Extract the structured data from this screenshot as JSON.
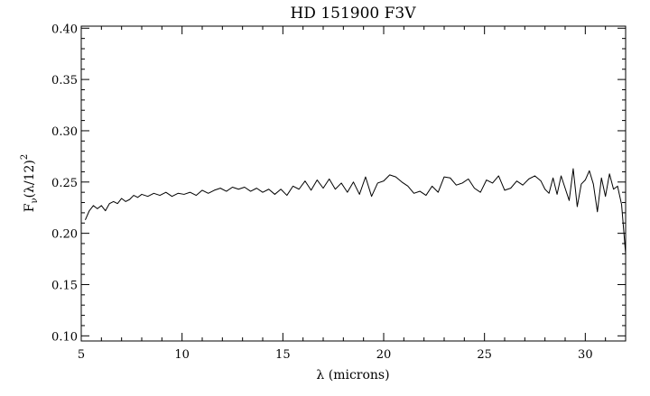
{
  "chart_data": {
    "type": "line",
    "title": "HD 151900 F3V",
    "xlabel": "λ (microns)",
    "ylabel": {
      "symbol": "F",
      "subscript": "ν",
      "expression": "(λ/12)",
      "superscript": "2"
    },
    "xlim": [
      5,
      32
    ],
    "ylim": [
      0.095,
      0.402
    ],
    "x_ticks": [
      5,
      10,
      15,
      20,
      25,
      30
    ],
    "x_tick_labels": [
      "5",
      "10",
      "15",
      "20",
      "25",
      "30"
    ],
    "y_ticks": [
      0.1,
      0.15,
      0.2,
      0.25,
      0.3,
      0.35,
      0.4
    ],
    "y_tick_labels": [
      "0.10",
      "0.15",
      "0.20",
      "0.25",
      "0.30",
      "0.35",
      "0.40"
    ],
    "grid": false,
    "line_color": "#000000",
    "series": [
      {
        "x": [
          5.2,
          5.4,
          5.6,
          5.8,
          6.0,
          6.2,
          6.4,
          6.6,
          6.8,
          7.0,
          7.2,
          7.4,
          7.6,
          7.8,
          8.0,
          8.3,
          8.6,
          8.9,
          9.2,
          9.5,
          9.8,
          10.1,
          10.4,
          10.7,
          11.0,
          11.3,
          11.6,
          11.9,
          12.2,
          12.5,
          12.8,
          13.1,
          13.4,
          13.7,
          14.0,
          14.3,
          14.6,
          14.9,
          15.2,
          15.5,
          15.8,
          16.1,
          16.4,
          16.7,
          17.0,
          17.3,
          17.6,
          17.9,
          18.2,
          18.5,
          18.8,
          19.1,
          19.4,
          19.7,
          20.0,
          20.3,
          20.6,
          20.9,
          21.2,
          21.5,
          21.8,
          22.1,
          22.4,
          22.7,
          23.0,
          23.3,
          23.6,
          23.9,
          24.2,
          24.5,
          24.8,
          25.1,
          25.4,
          25.7,
          26.0,
          26.3,
          26.6,
          26.9,
          27.2,
          27.5,
          27.8,
          28.0,
          28.2,
          28.4,
          28.6,
          28.8,
          29.0,
          29.2,
          29.4,
          29.6,
          29.8,
          30.0,
          30.2,
          30.4,
          30.6,
          30.8,
          31.0,
          31.2,
          31.4,
          31.6,
          31.8,
          32.0
        ],
        "y": [
          0.213,
          0.222,
          0.227,
          0.224,
          0.227,
          0.222,
          0.229,
          0.231,
          0.229,
          0.234,
          0.231,
          0.233,
          0.237,
          0.235,
          0.238,
          0.236,
          0.239,
          0.237,
          0.24,
          0.236,
          0.239,
          0.238,
          0.24,
          0.237,
          0.242,
          0.239,
          0.242,
          0.244,
          0.241,
          0.245,
          0.243,
          0.245,
          0.241,
          0.244,
          0.24,
          0.243,
          0.238,
          0.243,
          0.237,
          0.246,
          0.243,
          0.251,
          0.242,
          0.252,
          0.244,
          0.253,
          0.243,
          0.249,
          0.24,
          0.25,
          0.238,
          0.255,
          0.236,
          0.249,
          0.251,
          0.257,
          0.255,
          0.25,
          0.246,
          0.239,
          0.241,
          0.237,
          0.246,
          0.24,
          0.255,
          0.254,
          0.247,
          0.249,
          0.253,
          0.244,
          0.24,
          0.252,
          0.249,
          0.256,
          0.242,
          0.244,
          0.251,
          0.247,
          0.253,
          0.256,
          0.251,
          0.243,
          0.239,
          0.254,
          0.238,
          0.256,
          0.244,
          0.232,
          0.263,
          0.226,
          0.248,
          0.252,
          0.261,
          0.248,
          0.221,
          0.254,
          0.236,
          0.258,
          0.243,
          0.246,
          0.228,
          0.18
        ]
      }
    ]
  }
}
